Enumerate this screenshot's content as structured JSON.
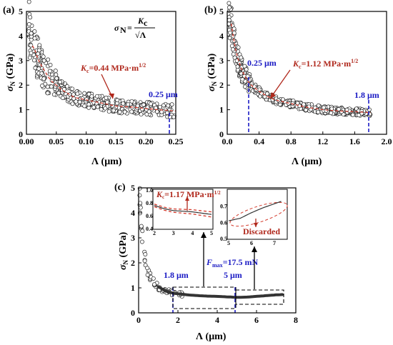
{
  "chart_data": [
    {
      "panel": "(a)",
      "type": "scatter",
      "xlabel": "Λ (μm)",
      "ylabel": "σN (GPa)",
      "xlim": [
        0,
        0.25
      ],
      "ylim": [
        0,
        5
      ],
      "xticks": [
        "0.00",
        "0.05",
        "0.10",
        "0.15",
        "0.20",
        "0.25"
      ],
      "yticks": [
        "0",
        "1",
        "2",
        "3",
        "4",
        "5"
      ],
      "formula": "σN = Kc / √Λ",
      "fit_label": "Kc=0.44 MPa·m1/2",
      "kc": 0.44,
      "marker_label": "0.25 μm",
      "marker_x": 0.25,
      "series": [
        {
          "x": [
            0.005,
            0.01,
            0.015,
            0.02,
            0.03,
            0.04,
            0.05,
            0.06,
            0.08,
            0.1,
            0.12,
            0.15,
            0.18,
            0.2,
            0.22,
            0.25
          ],
          "y": [
            4.3,
            3.6,
            3.4,
            3.0,
            2.6,
            2.2,
            2.0,
            1.8,
            1.5,
            1.4,
            1.3,
            1.15,
            1.1,
            1.05,
            1.0,
            0.95
          ]
        }
      ]
    },
    {
      "panel": "(b)",
      "type": "scatter",
      "xlabel": "Λ (μm)",
      "ylabel": "σN (GPa)",
      "xlim": [
        0,
        2.0
      ],
      "ylim": [
        0,
        5
      ],
      "xticks": [
        "0.0",
        "0.4",
        "0.8",
        "1.2",
        "1.6",
        "2.0"
      ],
      "yticks": [
        "0",
        "1",
        "2",
        "3",
        "4",
        "5"
      ],
      "fit_label": "Kc=1.12 MPa·m1/2",
      "kc": 1.12,
      "marker_labels": [
        "0.25 μm",
        "1.8 μm"
      ],
      "marker_x": [
        0.25,
        1.8
      ],
      "series": [
        {
          "x": [
            0.02,
            0.05,
            0.08,
            0.1,
            0.15,
            0.2,
            0.25,
            0.3,
            0.4,
            0.5,
            0.6,
            0.8,
            1.0,
            1.2,
            1.4,
            1.6,
            1.8
          ],
          "y": [
            4.8,
            4.5,
            3.9,
            3.5,
            2.9,
            2.5,
            2.2,
            2.0,
            1.75,
            1.55,
            1.4,
            1.25,
            1.1,
            1.0,
            0.95,
            0.92,
            0.88
          ]
        }
      ]
    },
    {
      "panel": "(c)",
      "type": "scatter",
      "xlabel": "Λ (μm)",
      "ylabel": "σN (GPa)",
      "xlim": [
        0,
        8
      ],
      "ylim": [
        0,
        5
      ],
      "xticks": [
        "0",
        "2",
        "4",
        "6",
        "8"
      ],
      "yticks": [
        "0",
        "1",
        "2",
        "3",
        "4",
        "5"
      ],
      "marker_labels": [
        "1.8 μm",
        "5 μm"
      ],
      "marker_x": [
        1.8,
        5
      ],
      "load_label": "Fmax=17.5 mN",
      "series": [
        {
          "x": [
            0.05,
            0.1,
            0.2,
            0.3,
            0.4,
            0.5,
            0.7,
            1.0,
            1.3,
            1.6,
            1.8,
            2.5,
            3.0,
            3.5,
            4.0,
            4.5,
            5.0,
            5.5,
            6.0,
            6.5,
            7.0,
            7.3
          ],
          "y": [
            4.6,
            4.0,
            3.0,
            2.3,
            1.9,
            1.6,
            1.3,
            1.05,
            0.9,
            0.82,
            0.78,
            0.72,
            0.69,
            0.67,
            0.66,
            0.64,
            0.62,
            0.63,
            0.66,
            0.69,
            0.72,
            0.73
          ]
        }
      ],
      "insets": [
        {
          "fit_label": "Kc=1.17 MPa·m1/2",
          "kc": 1.17,
          "xlim": [
            2,
            5
          ],
          "ylim": [
            0.4,
            1.0
          ],
          "xticks": [
            "2",
            "3",
            "4",
            "5"
          ],
          "yticks": [
            "0.4",
            "0.6",
            "0.8",
            "1.0"
          ],
          "x": [
            2.0,
            2.5,
            3.0,
            3.5,
            4.0,
            4.5,
            5.0
          ],
          "y": [
            0.76,
            0.71,
            0.68,
            0.67,
            0.66,
            0.64,
            0.62
          ]
        },
        {
          "note": "Discarded",
          "xlim": [
            5,
            7.5
          ],
          "ylim": [
            0.5,
            0.8
          ],
          "xticks": [
            "5",
            "6",
            "7"
          ],
          "yticks": [
            "0.5",
            "0.6",
            "0.7"
          ],
          "x": [
            5.0,
            5.5,
            6.0,
            6.5,
            7.0,
            7.3
          ],
          "y": [
            0.61,
            0.625,
            0.66,
            0.69,
            0.715,
            0.73
          ]
        }
      ]
    }
  ]
}
